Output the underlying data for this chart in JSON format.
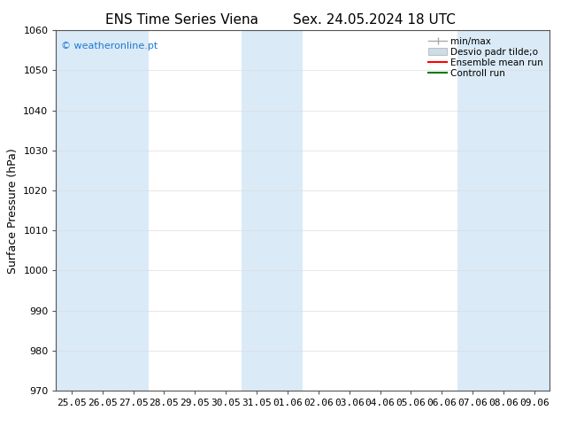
{
  "title_left": "ENS Time Series Viena",
  "title_right": "Sex. 24.05.2024 18 UTC",
  "ylabel": "Surface Pressure (hPa)",
  "ylim": [
    970,
    1060
  ],
  "yticks": [
    970,
    980,
    990,
    1000,
    1010,
    1020,
    1030,
    1040,
    1050,
    1060
  ],
  "xtick_labels": [
    "25.05",
    "26.05",
    "27.05",
    "28.05",
    "29.05",
    "30.05",
    "31.05",
    "01.06",
    "02.06",
    "03.06",
    "04.06",
    "05.06",
    "06.06",
    "07.06",
    "08.06",
    "09.06"
  ],
  "shaded_indices": [
    0,
    1,
    2,
    6,
    7,
    13,
    14,
    15
  ],
  "shaded_color": "#daeaf7",
  "background_color": "#ffffff",
  "watermark": "© weatheronline.pt",
  "watermark_color": "#1e7ad4",
  "legend_entries": [
    "min/max",
    "Desvio padr tilde;o",
    "Ensemble mean run",
    "Controll run"
  ],
  "legend_line_color": "#aaaaaa",
  "legend_patch_color": "#ccdde8",
  "legend_red": "#ff0000",
  "legend_green": "#007700",
  "title_fontsize": 11,
  "ylabel_fontsize": 9,
  "tick_fontsize": 8,
  "watermark_fontsize": 8,
  "legend_fontsize": 7.5
}
